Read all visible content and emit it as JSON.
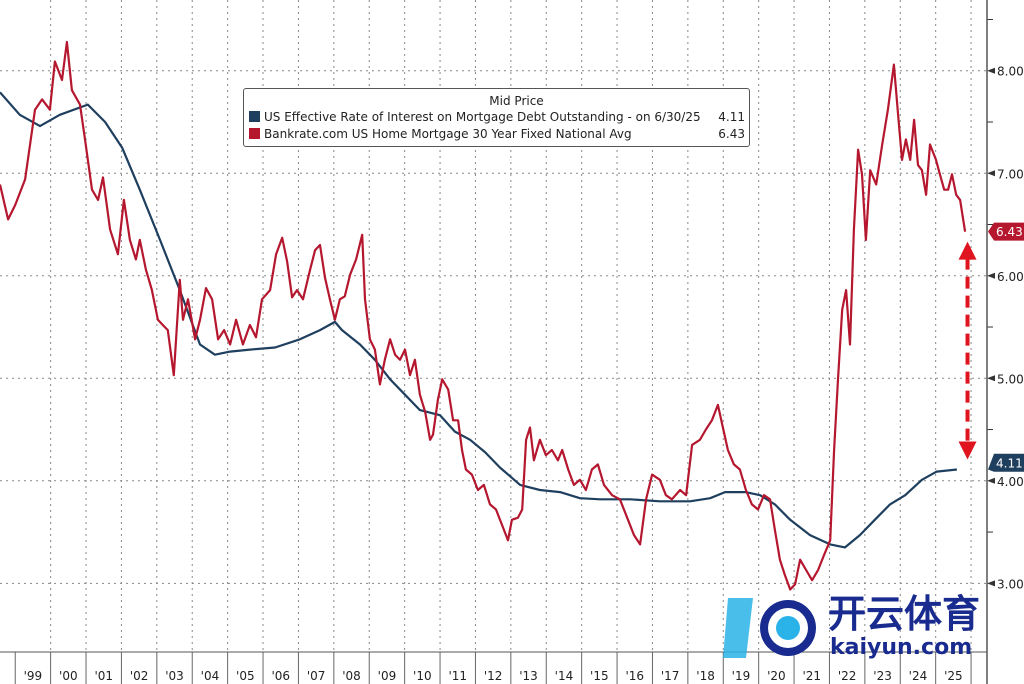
{
  "chart_data": {
    "type": "line",
    "title": "Mid Price",
    "xlabel": "",
    "ylabel": "",
    "xlim": [
      1998.57,
      2026.45
    ],
    "ylim": [
      2.33,
      8.69
    ],
    "x_tick_labels": [
      "'99",
      "'00",
      "'01",
      "'02",
      "'03",
      "'04",
      "'05",
      "'06",
      "'07",
      "'08",
      "'09",
      "'10",
      "'11",
      "'12",
      "'13",
      "'14",
      "'15",
      "'16",
      "'17",
      "'18",
      "'19",
      "'20",
      "'21",
      "'22",
      "'23",
      "'24",
      "'25"
    ],
    "y_ticks": [
      3,
      4,
      5,
      6,
      7,
      8
    ],
    "y_tick_labels": [
      "3.00",
      "4.00",
      "5.00",
      "6.00",
      "7.00",
      "8.00"
    ],
    "grid": true,
    "legend_position": "top-center",
    "series": [
      {
        "name": "US Effective Rate of Interest on Mortgage Debt Outstanding -  on 6/30/25",
        "last_value_label": "4.11",
        "color": "#1f3f5f",
        "points": [
          [
            1998.57,
            7.79
          ],
          [
            1999.13,
            7.57
          ],
          [
            1999.7,
            7.46
          ],
          [
            2000.26,
            7.57
          ],
          [
            2001.05,
            7.67
          ],
          [
            2001.54,
            7.5
          ],
          [
            2002.02,
            7.25
          ],
          [
            2002.52,
            6.84
          ],
          [
            2003.09,
            6.35
          ],
          [
            2003.65,
            5.86
          ],
          [
            2004.22,
            5.33
          ],
          [
            2004.64,
            5.23
          ],
          [
            2005.07,
            5.26
          ],
          [
            2005.63,
            5.28
          ],
          [
            2006.34,
            5.3
          ],
          [
            2007.04,
            5.38
          ],
          [
            2007.61,
            5.47
          ],
          [
            2008.03,
            5.55
          ],
          [
            2008.23,
            5.47
          ],
          [
            2008.74,
            5.33
          ],
          [
            2009.16,
            5.18
          ],
          [
            2009.59,
            4.99
          ],
          [
            2010.01,
            4.84
          ],
          [
            2010.43,
            4.69
          ],
          [
            2011.0,
            4.64
          ],
          [
            2011.42,
            4.48
          ],
          [
            2011.85,
            4.4
          ],
          [
            2012.27,
            4.28
          ],
          [
            2012.69,
            4.13
          ],
          [
            2013.26,
            3.96
          ],
          [
            2013.82,
            3.91
          ],
          [
            2014.39,
            3.89
          ],
          [
            2014.95,
            3.83
          ],
          [
            2015.52,
            3.82
          ],
          [
            2016.37,
            3.82
          ],
          [
            2017.21,
            3.8
          ],
          [
            2018.06,
            3.8
          ],
          [
            2018.63,
            3.83
          ],
          [
            2019.05,
            3.89
          ],
          [
            2019.62,
            3.89
          ],
          [
            2020.04,
            3.86
          ],
          [
            2020.46,
            3.77
          ],
          [
            2020.89,
            3.62
          ],
          [
            2021.45,
            3.47
          ],
          [
            2022.02,
            3.38
          ],
          [
            2022.44,
            3.35
          ],
          [
            2022.86,
            3.47
          ],
          [
            2023.28,
            3.62
          ],
          [
            2023.71,
            3.77
          ],
          [
            2024.14,
            3.86
          ],
          [
            2024.61,
            4.01
          ],
          [
            2025.03,
            4.09
          ],
          [
            2025.6,
            4.11
          ]
        ]
      },
      {
        "name": "Bankrate.com US Home Mortgage 30 Year Fixed National Avg",
        "last_value_label": "6.43",
        "color": "#b5172f",
        "points": [
          [
            1998.57,
            6.89
          ],
          [
            1998.8,
            6.55
          ],
          [
            1999.0,
            6.69
          ],
          [
            1999.28,
            6.94
          ],
          [
            1999.56,
            7.62
          ],
          [
            1999.76,
            7.72
          ],
          [
            1999.98,
            7.62
          ],
          [
            2000.12,
            8.09
          ],
          [
            2000.32,
            7.91
          ],
          [
            2000.46,
            8.28
          ],
          [
            2000.6,
            7.81
          ],
          [
            2000.83,
            7.67
          ],
          [
            2000.97,
            7.33
          ],
          [
            2001.17,
            6.84
          ],
          [
            2001.34,
            6.74
          ],
          [
            2001.48,
            6.96
          ],
          [
            2001.68,
            6.45
          ],
          [
            2001.9,
            6.21
          ],
          [
            2002.07,
            6.74
          ],
          [
            2002.24,
            6.35
          ],
          [
            2002.41,
            6.16
          ],
          [
            2002.52,
            6.35
          ],
          [
            2002.69,
            6.06
          ],
          [
            2002.86,
            5.86
          ],
          [
            2003.03,
            5.57
          ],
          [
            2003.17,
            5.52
          ],
          [
            2003.31,
            5.47
          ],
          [
            2003.48,
            5.03
          ],
          [
            2003.65,
            5.96
          ],
          [
            2003.74,
            5.57
          ],
          [
            2003.88,
            5.77
          ],
          [
            2004.08,
            5.38
          ],
          [
            2004.22,
            5.57
          ],
          [
            2004.39,
            5.88
          ],
          [
            2004.56,
            5.77
          ],
          [
            2004.73,
            5.38
          ],
          [
            2004.9,
            5.47
          ],
          [
            2005.07,
            5.33
          ],
          [
            2005.24,
            5.57
          ],
          [
            2005.43,
            5.33
          ],
          [
            2005.63,
            5.52
          ],
          [
            2005.8,
            5.4
          ],
          [
            2005.97,
            5.77
          ],
          [
            2006.2,
            5.86
          ],
          [
            2006.37,
            6.21
          ],
          [
            2006.54,
            6.37
          ],
          [
            2006.68,
            6.14
          ],
          [
            2006.82,
            5.79
          ],
          [
            2006.96,
            5.86
          ],
          [
            2007.13,
            5.77
          ],
          [
            2007.33,
            6.06
          ],
          [
            2007.47,
            6.25
          ],
          [
            2007.61,
            6.3
          ],
          [
            2007.75,
            5.98
          ],
          [
            2007.89,
            5.77
          ],
          [
            2008.03,
            5.57
          ],
          [
            2008.17,
            5.77
          ],
          [
            2008.31,
            5.8
          ],
          [
            2008.46,
            6.01
          ],
          [
            2008.63,
            6.16
          ],
          [
            2008.8,
            6.4
          ],
          [
            2008.88,
            5.77
          ],
          [
            2009.02,
            5.38
          ],
          [
            2009.16,
            5.28
          ],
          [
            2009.3,
            4.94
          ],
          [
            2009.44,
            5.18
          ],
          [
            2009.59,
            5.38
          ],
          [
            2009.73,
            5.23
          ],
          [
            2009.87,
            5.18
          ],
          [
            2010.01,
            5.28
          ],
          [
            2010.15,
            5.03
          ],
          [
            2010.29,
            5.18
          ],
          [
            2010.43,
            4.84
          ],
          [
            2010.58,
            4.67
          ],
          [
            2010.72,
            4.4
          ],
          [
            2010.8,
            4.45
          ],
          [
            2010.94,
            4.79
          ],
          [
            2011.06,
            4.99
          ],
          [
            2011.23,
            4.89
          ],
          [
            2011.37,
            4.59
          ],
          [
            2011.51,
            4.59
          ],
          [
            2011.62,
            4.3
          ],
          [
            2011.73,
            4.11
          ],
          [
            2011.9,
            4.06
          ],
          [
            2012.07,
            3.91
          ],
          [
            2012.24,
            3.96
          ],
          [
            2012.41,
            3.77
          ],
          [
            2012.58,
            3.72
          ],
          [
            2012.75,
            3.57
          ],
          [
            2012.92,
            3.42
          ],
          [
            2013.03,
            3.62
          ],
          [
            2013.2,
            3.64
          ],
          [
            2013.32,
            3.72
          ],
          [
            2013.43,
            4.4
          ],
          [
            2013.54,
            4.52
          ],
          [
            2013.65,
            4.2
          ],
          [
            2013.82,
            4.4
          ],
          [
            2013.99,
            4.25
          ],
          [
            2014.16,
            4.3
          ],
          [
            2014.33,
            4.2
          ],
          [
            2014.45,
            4.3
          ],
          [
            2014.62,
            4.11
          ],
          [
            2014.78,
            3.96
          ],
          [
            2014.95,
            4.01
          ],
          [
            2015.12,
            3.91
          ],
          [
            2015.29,
            4.11
          ],
          [
            2015.46,
            4.16
          ],
          [
            2015.63,
            3.96
          ],
          [
            2015.86,
            3.86
          ],
          [
            2016.08,
            3.82
          ],
          [
            2016.31,
            3.62
          ],
          [
            2016.48,
            3.47
          ],
          [
            2016.65,
            3.38
          ],
          [
            2016.82,
            3.82
          ],
          [
            2016.99,
            4.06
          ],
          [
            2017.21,
            4.01
          ],
          [
            2017.38,
            3.86
          ],
          [
            2017.55,
            3.82
          ],
          [
            2017.78,
            3.91
          ],
          [
            2017.95,
            3.86
          ],
          [
            2018.12,
            4.35
          ],
          [
            2018.34,
            4.4
          ],
          [
            2018.51,
            4.5
          ],
          [
            2018.68,
            4.59
          ],
          [
            2018.85,
            4.74
          ],
          [
            2018.97,
            4.55
          ],
          [
            2019.13,
            4.3
          ],
          [
            2019.3,
            4.16
          ],
          [
            2019.47,
            4.11
          ],
          [
            2019.64,
            3.91
          ],
          [
            2019.81,
            3.77
          ],
          [
            2019.98,
            3.72
          ],
          [
            2020.15,
            3.86
          ],
          [
            2020.32,
            3.82
          ],
          [
            2020.46,
            3.52
          ],
          [
            2020.6,
            3.23
          ],
          [
            2020.74,
            3.08
          ],
          [
            2020.89,
            2.94
          ],
          [
            2021.03,
            2.99
          ],
          [
            2021.17,
            3.23
          ],
          [
            2021.34,
            3.13
          ],
          [
            2021.51,
            3.03
          ],
          [
            2021.68,
            3.13
          ],
          [
            2021.85,
            3.28
          ],
          [
            2022.02,
            3.42
          ],
          [
            2022.13,
            4.3
          ],
          [
            2022.24,
            4.99
          ],
          [
            2022.36,
            5.67
          ],
          [
            2022.47,
            5.86
          ],
          [
            2022.58,
            5.33
          ],
          [
            2022.69,
            6.45
          ],
          [
            2022.81,
            7.23
          ],
          [
            2022.92,
            6.99
          ],
          [
            2023.03,
            6.35
          ],
          [
            2023.15,
            7.03
          ],
          [
            2023.32,
            6.89
          ],
          [
            2023.49,
            7.28
          ],
          [
            2023.65,
            7.62
          ],
          [
            2023.82,
            8.06
          ],
          [
            2023.94,
            7.57
          ],
          [
            2024.05,
            7.13
          ],
          [
            2024.16,
            7.33
          ],
          [
            2024.28,
            7.13
          ],
          [
            2024.39,
            7.52
          ],
          [
            2024.5,
            7.08
          ],
          [
            2024.61,
            7.03
          ],
          [
            2024.73,
            6.79
          ],
          [
            2024.84,
            7.28
          ],
          [
            2025.01,
            7.13
          ],
          [
            2025.12,
            6.99
          ],
          [
            2025.24,
            6.84
          ],
          [
            2025.35,
            6.84
          ],
          [
            2025.46,
            6.99
          ],
          [
            2025.58,
            6.79
          ],
          [
            2025.69,
            6.74
          ],
          [
            2025.83,
            6.43
          ]
        ]
      }
    ],
    "annotations": [
      {
        "type": "double-arrow",
        "from": 6.43,
        "to": 4.11,
        "x": 2025.9,
        "color": "#e0141e"
      }
    ]
  },
  "legend": {
    "title": "Mid Price",
    "items": [
      {
        "label": "US Effective Rate of Interest on Mortgage Debt Outstanding -  on 6/30/25",
        "value": "4.11",
        "color": "#1f3f5f"
      },
      {
        "label": "Bankrate.com US Home Mortgage 30 Year Fixed National Avg",
        "value": "6.43",
        "color": "#b5172f"
      }
    ]
  },
  "watermark": {
    "cn": "开云体育",
    "en": "kaiyun.com"
  }
}
